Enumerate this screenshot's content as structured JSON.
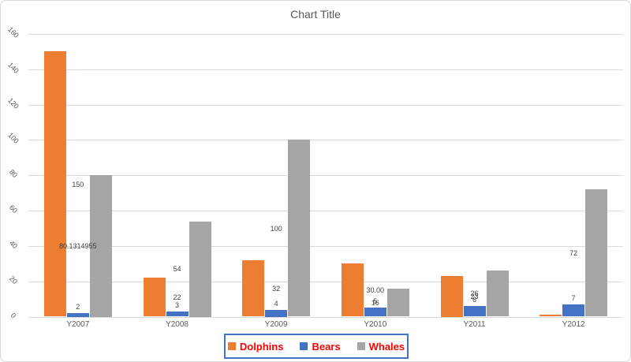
{
  "chart_data": {
    "type": "bar",
    "title": "Chart Title",
    "categories": [
      "Y2007",
      "Y2008",
      "Y2009",
      "Y2010",
      "Y2011",
      "Y2012"
    ],
    "series": [
      {
        "name": "Dolphins",
        "color": "#ED7D31",
        "values": [
          150,
          22,
          32,
          30,
          23,
          1
        ],
        "labels": [
          "150",
          "22",
          "32",
          "30.00",
          "23",
          "1"
        ]
      },
      {
        "name": "Bears",
        "color": "#4472C4",
        "values": [
          2,
          3,
          4,
          5,
          6,
          7
        ],
        "labels": [
          "2",
          "3",
          "4",
          "5",
          "6",
          "7"
        ]
      },
      {
        "name": "Whales",
        "color": "#A5A5A5",
        "values": [
          80.1314955,
          54,
          100,
          16,
          26,
          72
        ],
        "labels": [
          "80.1314955",
          "54",
          "100",
          "16",
          "26",
          "72"
        ]
      }
    ],
    "ylim": [
      0,
      160
    ],
    "yticks": [
      0,
      20,
      40,
      60,
      80,
      100,
      120,
      140,
      160
    ],
    "ytick_rotation_deg": 45,
    "grid": true,
    "legend": {
      "position": "bottom",
      "entries": [
        "Dolphins",
        "Bears",
        "Whales"
      ],
      "text_color": "#FF0000",
      "border_color": "#4472C4"
    },
    "colors": {
      "gridline": "#D9D9D9",
      "axis_text": "#595959",
      "data_label": "#404040",
      "title_text": "#595959",
      "chart_border": "#D9D9D9",
      "background": "#FFFFFF"
    }
  }
}
